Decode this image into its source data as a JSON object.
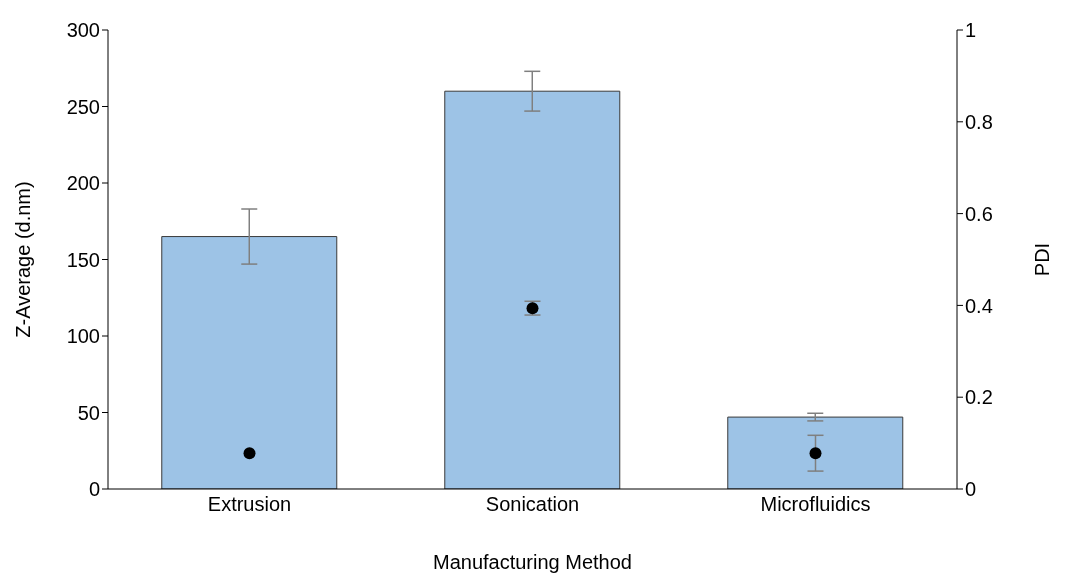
{
  "chart_data": {
    "type": "bar",
    "xlabel": "Manufacturing Method",
    "ylabel": "Z-Average (d.nm)",
    "y2label": "PDI",
    "categories": [
      "Extrusion",
      "Sonication",
      "Microfluidics"
    ],
    "ylim": [
      0,
      300
    ],
    "yticks": [
      0,
      50,
      100,
      150,
      200,
      250,
      300
    ],
    "y2lim": [
      0,
      1
    ],
    "y2ticks": [
      0,
      0.2,
      0.4,
      0.6,
      0.8,
      1
    ],
    "series": [
      {
        "color": "#9dc3e6",
        "values": [
          165,
          260,
          47
        ],
        "errors": [
          18,
          13,
          2.5
        ]
      },
      {
        "type": "scatter",
        "axis": "y2",
        "marker": "circle",
        "color": "#000000",
        "values": [
          0.078,
          0.394,
          0.078
        ],
        "errors": [
          null,
          0.015,
          0.039
        ]
      }
    ]
  }
}
